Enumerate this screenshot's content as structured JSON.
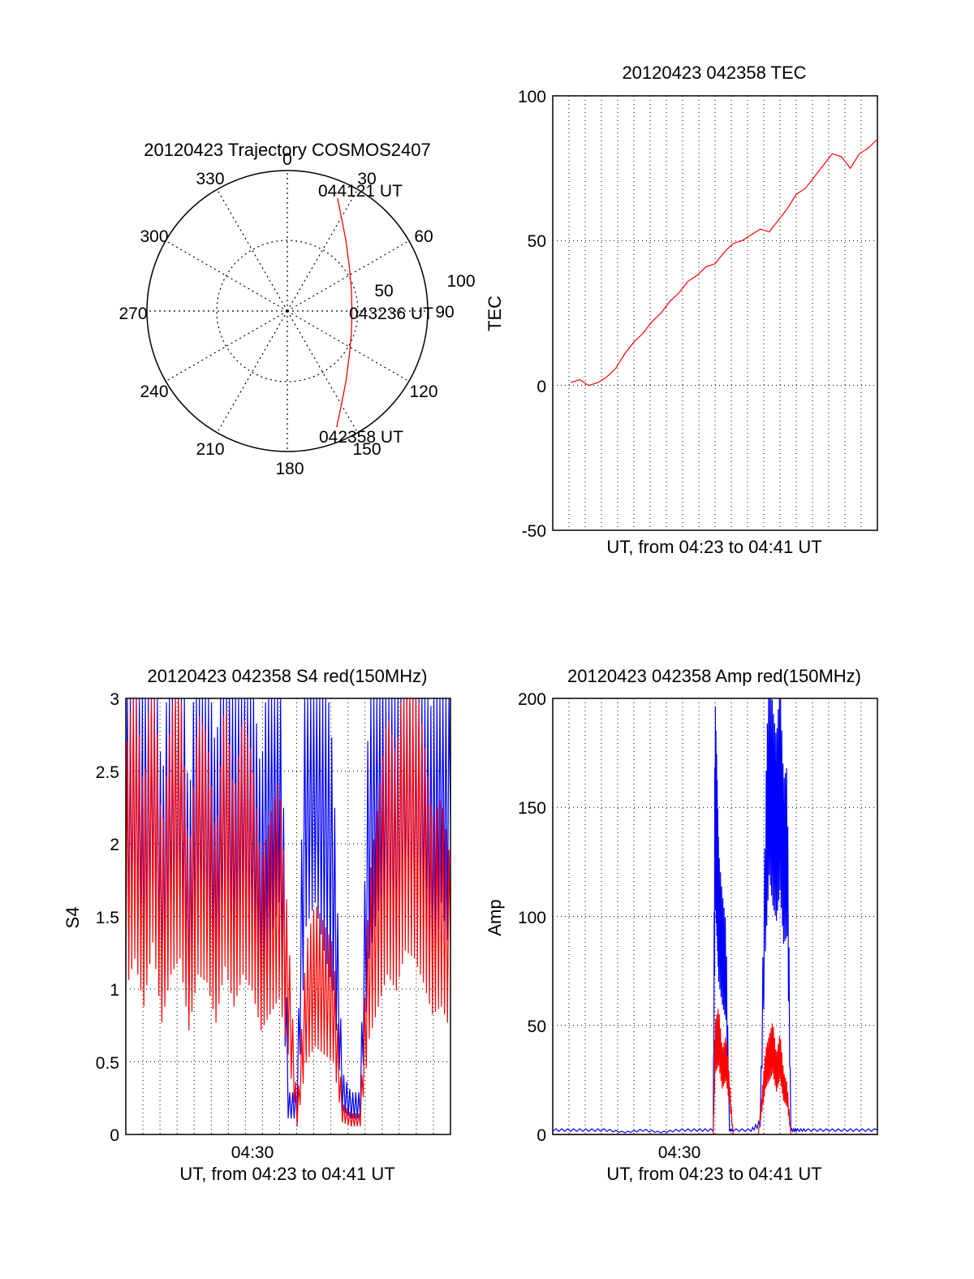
{
  "colors": {
    "red_series": "#ff0000",
    "blue_series": "#0000ff",
    "grid": "#000000",
    "background": "#ffffff"
  },
  "chart_data": [
    {
      "id": "trajectory",
      "type": "polar",
      "title": "20120423 Trajectory COSMOS2407",
      "azimuth_labels": [
        "0",
        "30",
        "60",
        "90",
        "120",
        "150",
        "180",
        "210",
        "240",
        "270",
        "300",
        "330"
      ],
      "radius_labels": [
        "50",
        "100"
      ],
      "start_label": "042358 UT",
      "mid_label": "043236 UT",
      "end_label": "044121 UT",
      "track": [
        {
          "az": 157,
          "r": 90
        },
        {
          "az": 150,
          "r": 77
        },
        {
          "az": 140,
          "r": 65
        },
        {
          "az": 125,
          "r": 54
        },
        {
          "az": 108,
          "r": 48
        },
        {
          "az": 90,
          "r": 46
        },
        {
          "az": 72,
          "r": 48
        },
        {
          "az": 55,
          "r": 54
        },
        {
          "az": 40,
          "r": 65
        },
        {
          "az": 30,
          "r": 77
        },
        {
          "az": 24,
          "r": 88
        }
      ],
      "grid": true
    },
    {
      "id": "tec",
      "type": "line",
      "title": "20120423 042358 TEC",
      "xlabel": "UT, from 04:23 to 04:41 UT",
      "ylabel": "TEC",
      "ylim": [
        -50,
        100
      ],
      "yticks": [
        "100",
        "50",
        "0",
        "-50"
      ],
      "xlim": [
        0,
        18
      ],
      "series": [
        {
          "color": "#ff0000",
          "x": [
            1.0,
            1.5,
            2.0,
            2.5,
            3.0,
            3.5,
            4.0,
            4.5,
            5.0,
            5.5,
            6.0,
            6.5,
            7.0,
            7.5,
            8.0,
            8.5,
            9.0,
            9.5,
            10.0,
            10.5,
            11.0,
            11.5,
            12.0,
            12.5,
            13.0,
            13.5,
            14.0,
            14.5,
            15.0,
            15.5,
            16.0,
            16.5,
            17.0,
            17.5,
            18.0
          ],
          "y": [
            1,
            2,
            0,
            1,
            3,
            6,
            11,
            15,
            18,
            22,
            25,
            29,
            32,
            36,
            38,
            41,
            42,
            46,
            49,
            50,
            52,
            54,
            53,
            57,
            61,
            66,
            68,
            72,
            76,
            80,
            79,
            75,
            80,
            82,
            85
          ]
        }
      ],
      "grid": true
    },
    {
      "id": "s4",
      "type": "line",
      "title": "20120423 042358 S4 red(150MHz)",
      "xlabel": "UT, from 04:23 to 04:41 UT",
      "ylabel": "S4",
      "xtick_label": "04:30",
      "ylim": [
        0,
        3
      ],
      "yticks": [
        "3",
        "2.5",
        "2",
        "1.5",
        "1",
        "0.5",
        "0"
      ],
      "xlim": [
        0,
        18
      ],
      "series": [
        {
          "color": "#0000ff",
          "x": [
            0.0,
            0.5,
            1.0,
            1.5,
            2.0,
            2.5,
            3.0,
            3.5,
            4.0,
            4.5,
            5.0,
            5.5,
            6.0,
            6.5,
            7.0,
            7.5,
            8.0,
            8.5,
            9.0,
            9.5,
            10.0,
            10.5,
            11.0,
            11.5,
            12.0,
            12.5,
            13.0,
            13.5,
            14.0,
            14.5,
            15.0,
            15.5,
            16.0,
            16.5,
            17.0,
            17.5,
            18.0
          ],
          "y": [
            2.2,
            2.7,
            2.0,
            2.9,
            1.6,
            2.5,
            2.8,
            1.5,
            2.6,
            2.3,
            1.8,
            2.6,
            2.0,
            2.7,
            2.2,
            1.7,
            2.4,
            2.9,
            0.2,
            0.2,
            2.6,
            2.9,
            2.3,
            1.8,
            0.3,
            0.2,
            0.2,
            2.2,
            2.8,
            2.6,
            2.0,
            2.9,
            2.4,
            2.7,
            1.9,
            2.9,
            2.2
          ]
        },
        {
          "color": "#ff0000",
          "x": [
            0.0,
            0.5,
            1.0,
            1.5,
            2.0,
            2.5,
            3.0,
            3.5,
            4.0,
            4.5,
            5.0,
            5.5,
            6.0,
            6.5,
            7.0,
            7.5,
            8.0,
            8.5,
            9.0,
            9.5,
            10.0,
            10.5,
            11.0,
            11.5,
            12.0,
            12.5,
            13.0,
            13.5,
            14.0,
            14.5,
            15.0,
            15.5,
            16.0,
            16.5,
            17.0,
            17.5,
            18.0
          ],
          "y": [
            1.8,
            2.2,
            1.6,
            2.4,
            1.4,
            2.0,
            2.2,
            1.3,
            2.0,
            1.9,
            1.4,
            2.1,
            1.6,
            2.0,
            1.8,
            1.3,
            1.5,
            1.7,
            1.0,
            0.1,
            0.9,
            1.1,
            1.0,
            0.9,
            0.15,
            0.1,
            0.1,
            1.2,
            1.6,
            2.0,
            1.8,
            2.3,
            2.2,
            1.9,
            1.5,
            1.6,
            1.3
          ]
        }
      ],
      "grid": true
    },
    {
      "id": "amp",
      "type": "line",
      "title": "20120423 042358 Amp red(150MHz)",
      "xlabel": "UT, from 04:23 to 04:41 UT",
      "ylabel": "Amp",
      "xtick_label": "04:30",
      "ylim": [
        0,
        200
      ],
      "yticks": [
        "200",
        "150",
        "100",
        "50",
        "0"
      ],
      "xlim": [
        0,
        18
      ],
      "series": [
        {
          "color": "#0000ff",
          "x": [
            0.0,
            1.0,
            2.0,
            3.0,
            4.0,
            5.0,
            6.0,
            7.0,
            8.0,
            8.9,
            9.0,
            9.1,
            9.2,
            9.4,
            9.6,
            9.8,
            10.0,
            11.0,
            11.5,
            11.8,
            12.0,
            12.2,
            12.4,
            12.6,
            12.8,
            13.0,
            13.2,
            13.5,
            14.0,
            15.0,
            16.0,
            17.0,
            18.0
          ],
          "y": [
            2,
            2,
            2,
            2,
            1,
            2,
            1,
            2,
            2,
            2,
            155,
            130,
            100,
            85,
            75,
            2,
            2,
            2,
            5,
            120,
            170,
            150,
            140,
            160,
            125,
            130,
            2,
            2,
            2,
            2,
            2,
            2,
            2
          ]
        },
        {
          "color": "#ff0000",
          "x": [
            0.0,
            8.9,
            9.0,
            9.2,
            9.4,
            9.6,
            9.8,
            10.0,
            11.4,
            11.6,
            11.8,
            12.0,
            12.2,
            12.4,
            12.6,
            12.8,
            13.0,
            13.2,
            13.5,
            18.0
          ],
          "y": [
            0,
            0,
            40,
            45,
            30,
            35,
            20,
            0,
            0,
            15,
            30,
            35,
            40,
            28,
            36,
            22,
            18,
            0,
            0,
            0
          ]
        }
      ],
      "grid": true
    }
  ]
}
